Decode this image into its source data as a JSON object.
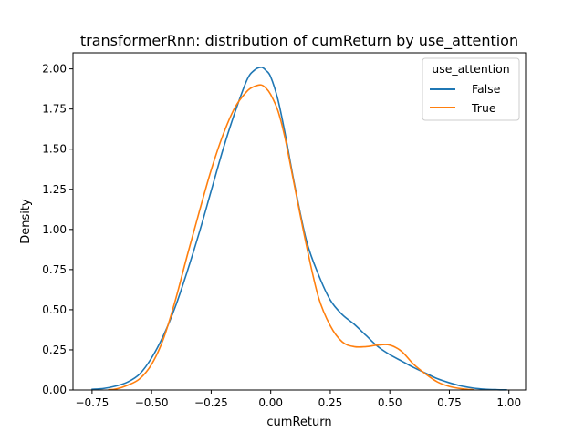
{
  "chart_data": {
    "type": "line",
    "title": "transformerRnn: distribution of cumReturn by use_attention",
    "xlabel": "cumReturn",
    "ylabel": "Density",
    "xlim": [
      -0.83,
      1.07
    ],
    "ylim": [
      0,
      2.1
    ],
    "xticks": [
      -0.75,
      -0.5,
      -0.25,
      0.0,
      0.25,
      0.5,
      0.75,
      1.0
    ],
    "xtick_labels": [
      "−0.75",
      "−0.50",
      "−0.25",
      "0.00",
      "0.25",
      "0.50",
      "0.75",
      "1.00"
    ],
    "yticks": [
      0,
      0.25,
      0.5,
      0.75,
      1.0,
      1.25,
      1.5,
      1.75,
      2.0
    ],
    "ytick_labels": [
      "0.00",
      "0.25",
      "0.50",
      "0.75",
      "1.00",
      "1.25",
      "1.50",
      "1.75",
      "2.00"
    ],
    "grid": false,
    "legend": {
      "title": "use_attention",
      "placement": "top-right"
    },
    "series": [
      {
        "name": "False",
        "color": "#1f77b4",
        "x": [
          -0.75,
          -0.7,
          -0.65,
          -0.6,
          -0.55,
          -0.5,
          -0.45,
          -0.4,
          -0.35,
          -0.3,
          -0.25,
          -0.2,
          -0.15,
          -0.1,
          -0.07,
          -0.04,
          -0.02,
          0.0,
          0.03,
          0.06,
          0.1,
          0.15,
          0.2,
          0.25,
          0.3,
          0.35,
          0.4,
          0.45,
          0.5,
          0.55,
          0.6,
          0.65,
          0.7,
          0.75,
          0.8,
          0.85,
          0.9,
          0.95,
          0.99
        ],
        "y": [
          0.005,
          0.01,
          0.025,
          0.05,
          0.1,
          0.2,
          0.34,
          0.52,
          0.74,
          0.98,
          1.24,
          1.5,
          1.73,
          1.93,
          1.99,
          2.01,
          1.99,
          1.95,
          1.81,
          1.6,
          1.28,
          0.93,
          0.72,
          0.56,
          0.47,
          0.41,
          0.34,
          0.27,
          0.22,
          0.18,
          0.14,
          0.105,
          0.07,
          0.045,
          0.025,
          0.012,
          0.005,
          0.002,
          0.001
        ]
      },
      {
        "name": "True",
        "color": "#ff7f0e",
        "x": [
          -0.68,
          -0.65,
          -0.6,
          -0.55,
          -0.5,
          -0.45,
          -0.4,
          -0.35,
          -0.3,
          -0.25,
          -0.2,
          -0.15,
          -0.1,
          -0.07,
          -0.04,
          -0.02,
          0.0,
          0.03,
          0.06,
          0.1,
          0.15,
          0.2,
          0.25,
          0.3,
          0.35,
          0.4,
          0.45,
          0.5,
          0.55,
          0.6,
          0.65,
          0.7,
          0.75,
          0.8,
          0.85
        ],
        "y": [
          0.002,
          0.006,
          0.03,
          0.07,
          0.16,
          0.32,
          0.56,
          0.84,
          1.11,
          1.37,
          1.59,
          1.76,
          1.86,
          1.89,
          1.9,
          1.88,
          1.84,
          1.74,
          1.57,
          1.27,
          0.9,
          0.58,
          0.4,
          0.3,
          0.27,
          0.27,
          0.28,
          0.28,
          0.24,
          0.16,
          0.1,
          0.05,
          0.022,
          0.008,
          0.002
        ]
      }
    ]
  }
}
